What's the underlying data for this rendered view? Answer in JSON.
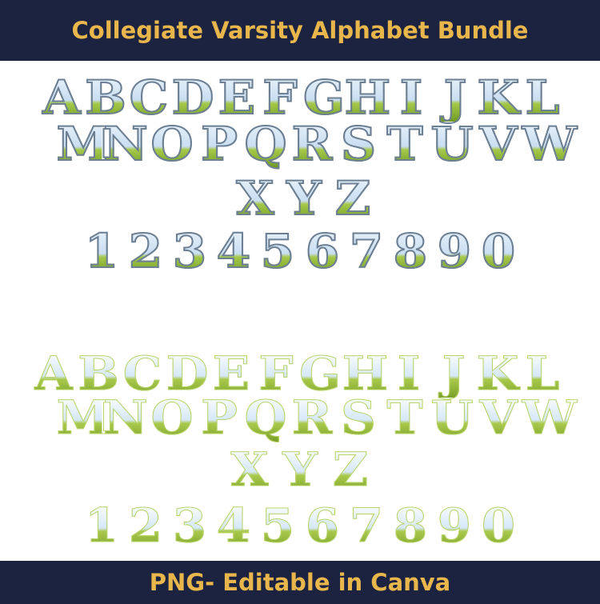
{
  "header": {
    "title": "Collegiate Varsity Alphabet Bundle"
  },
  "footer": {
    "text": "PNG- Editable in Canva"
  },
  "glyphs": {
    "row1": [
      "A",
      "B",
      "C",
      "D",
      "E",
      "F",
      "G",
      "H",
      "I",
      "J",
      "K",
      "L"
    ],
    "row2": [
      "M",
      "N",
      "O",
      "P",
      "Q",
      "R",
      "S",
      "T",
      "U",
      "V",
      "W"
    ],
    "row3": [
      "X",
      "Y",
      "Z"
    ],
    "row4": [
      "1",
      "2",
      "3",
      "4",
      "5",
      "6",
      "7",
      "8",
      "9",
      "0"
    ]
  },
  "colors": {
    "band": "#1b2340",
    "title": "#e9b64c",
    "sky": "#c9def1",
    "grass": "#8ab534",
    "outline": "#6c7f93"
  }
}
